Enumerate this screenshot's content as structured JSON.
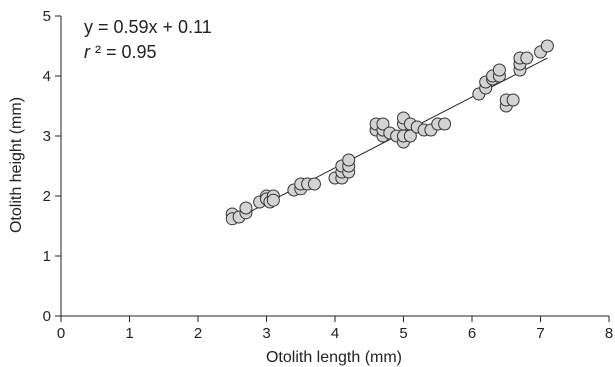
{
  "chart_data": {
    "type": "scatter",
    "title": "",
    "xlabel": "Otolith length (mm)",
    "ylabel": "Otolith height (mm)",
    "xlim": [
      0,
      8
    ],
    "ylim": [
      0,
      5
    ],
    "xticks": [
      0,
      1,
      2,
      3,
      4,
      5,
      6,
      7,
      8
    ],
    "yticks": [
      0,
      1,
      2,
      3,
      4,
      5
    ],
    "grid": false,
    "point_color": "#d3d3d3",
    "point_edge_color": "#333333",
    "points": [
      [
        2.5,
        1.7
      ],
      [
        2.5,
        1.62
      ],
      [
        2.6,
        1.65
      ],
      [
        2.7,
        1.72
      ],
      [
        2.7,
        1.8
      ],
      [
        2.9,
        1.9
      ],
      [
        3.0,
        2.0
      ],
      [
        3.0,
        1.95
      ],
      [
        3.05,
        1.9
      ],
      [
        3.1,
        2.0
      ],
      [
        3.1,
        1.93
      ],
      [
        3.4,
        2.1
      ],
      [
        3.5,
        2.12
      ],
      [
        3.5,
        2.2
      ],
      [
        3.6,
        2.2
      ],
      [
        3.7,
        2.2
      ],
      [
        4.0,
        2.3
      ],
      [
        4.1,
        2.3
      ],
      [
        4.1,
        2.4
      ],
      [
        4.1,
        2.5
      ],
      [
        4.2,
        2.4
      ],
      [
        4.2,
        2.5
      ],
      [
        4.2,
        2.6
      ],
      [
        4.6,
        3.1
      ],
      [
        4.6,
        3.2
      ],
      [
        4.7,
        3.0
      ],
      [
        4.7,
        3.1
      ],
      [
        4.7,
        3.2
      ],
      [
        4.8,
        3.05
      ],
      [
        4.9,
        3.0
      ],
      [
        5.0,
        2.9
      ],
      [
        5.0,
        3.0
      ],
      [
        5.0,
        3.2
      ],
      [
        5.0,
        3.3
      ],
      [
        5.1,
        3.0
      ],
      [
        5.1,
        3.2
      ],
      [
        5.2,
        3.15
      ],
      [
        5.3,
        3.1
      ],
      [
        5.4,
        3.1
      ],
      [
        5.5,
        3.2
      ],
      [
        5.6,
        3.2
      ],
      [
        6.1,
        3.7
      ],
      [
        6.2,
        3.8
      ],
      [
        6.2,
        3.9
      ],
      [
        6.3,
        3.95
      ],
      [
        6.3,
        4.0
      ],
      [
        6.4,
        4.0
      ],
      [
        6.4,
        4.1
      ],
      [
        6.5,
        3.5
      ],
      [
        6.5,
        3.6
      ],
      [
        6.6,
        3.6
      ],
      [
        6.7,
        4.1
      ],
      [
        6.7,
        4.2
      ],
      [
        6.7,
        4.3
      ],
      [
        6.8,
        4.3
      ],
      [
        7.0,
        4.4
      ],
      [
        7.1,
        4.5
      ]
    ],
    "fit_line": {
      "slope": 0.59,
      "intercept": 0.11,
      "x_range": [
        2.5,
        7.1
      ]
    },
    "annotations": {
      "equation": "y = 0.59x + 0.11",
      "r2_symbol": "r",
      "r2_rest": " ² = 0.95"
    }
  }
}
